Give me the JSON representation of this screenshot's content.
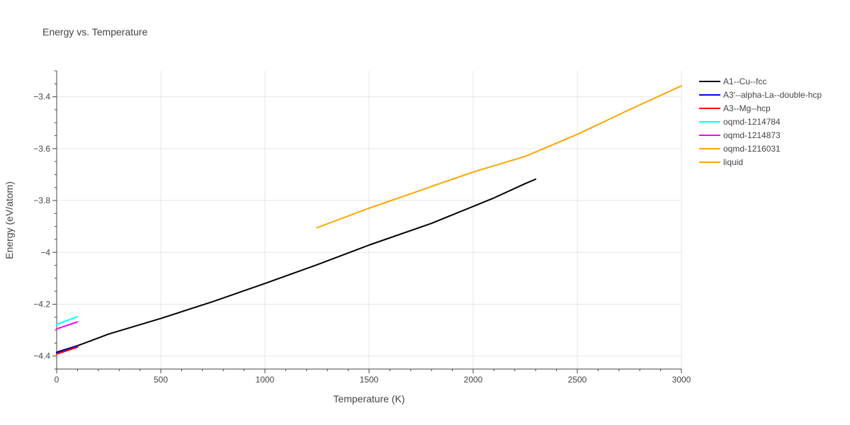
{
  "chart_data": {
    "type": "line",
    "title": "Energy vs. Temperature",
    "xlabel": "Temperature (K)",
    "ylabel": "Energy (eV/atom)",
    "xlim": [
      0,
      3000
    ],
    "ylim": [
      -4.45,
      -3.3
    ],
    "x_ticks": [
      0,
      500,
      1000,
      1500,
      2000,
      2500,
      3000
    ],
    "x_tick_labels": [
      "0",
      "500",
      "1000",
      "1500",
      "2000",
      "2500",
      "3000"
    ],
    "y_ticks": [
      -4.4,
      -4.2,
      -4.0,
      -3.8,
      -3.6,
      -3.4
    ],
    "y_tick_labels": [
      "−4.4",
      "−4.2",
      "−4",
      "−3.8",
      "−3.6",
      "−3.4"
    ],
    "grid": true,
    "legend_position": "right",
    "series": [
      {
        "name": "A1--Cu--fcc",
        "color": "#000000",
        "x": [
          0,
          100,
          250,
          500,
          750,
          1000,
          1250,
          1500,
          1800,
          2100,
          2250,
          2300
        ],
        "y": [
          -4.385,
          -4.36,
          -4.315,
          -4.255,
          -4.19,
          -4.12,
          -4.048,
          -3.972,
          -3.888,
          -3.79,
          -3.735,
          -3.718
        ]
      },
      {
        "name": "A3'--alpha-La--double-hcp",
        "color": "#0000ff",
        "x": [
          0,
          100
        ],
        "y": [
          -4.388,
          -4.362
        ]
      },
      {
        "name": "A3--Mg--hcp",
        "color": "#ff0000",
        "x": [
          0,
          100
        ],
        "y": [
          -4.392,
          -4.366
        ]
      },
      {
        "name": "oqmd-1214784",
        "color": "#00ffff",
        "x": [
          0,
          100
        ],
        "y": [
          -4.278,
          -4.248
        ]
      },
      {
        "name": "oqmd-1214873",
        "color": "#ff00ff",
        "x": [
          0,
          100
        ],
        "y": [
          -4.295,
          -4.268
        ]
      },
      {
        "name": "oqmd-1216031",
        "color": "#ffa500",
        "x": [],
        "y": []
      },
      {
        "name": "liquid",
        "color": "#ffa500",
        "x": [
          1250,
          1500,
          1750,
          2000,
          2250,
          2500,
          2750,
          3000
        ],
        "y": [
          -3.905,
          -3.83,
          -3.76,
          -3.69,
          -3.63,
          -3.545,
          -3.45,
          -3.358
        ]
      }
    ]
  }
}
